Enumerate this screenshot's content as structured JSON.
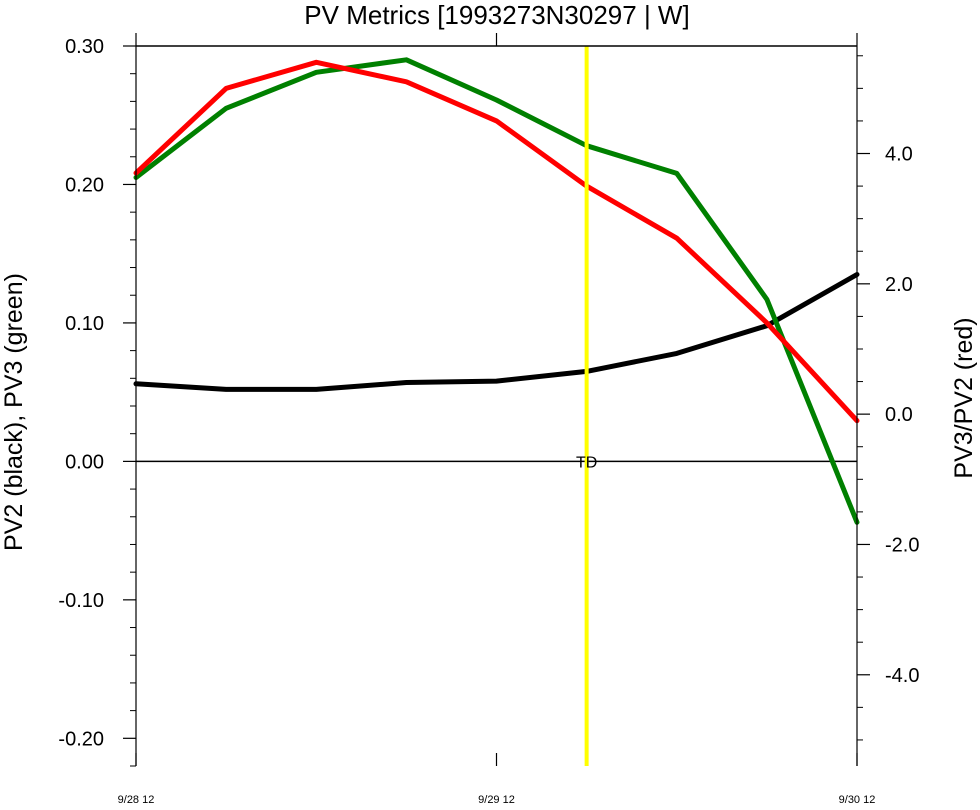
{
  "chart_data": {
    "type": "line",
    "title": "PV Metrics [1993273N30297 | W]",
    "ylabel_left": "PV2 (black), PV3 (green)",
    "ylabel_right": "PV3/PV2 (red)",
    "x_ticks": [
      "9/28 12",
      "9/29 12",
      "9/30 12"
    ],
    "x": [
      0,
      0.25,
      0.5,
      0.75,
      1,
      1.25,
      1.5,
      1.75,
      2
    ],
    "xlim": [
      0,
      2
    ],
    "ylim_left": [
      -0.22,
      0.3
    ],
    "ylim_right": [
      -5.4,
      5.65
    ],
    "y_ticks_left": [
      {
        "value": 0.3,
        "label": "0.30"
      },
      {
        "value": 0.2,
        "label": "0.20"
      },
      {
        "value": 0.1,
        "label": "0.10"
      },
      {
        "value": 0.0,
        "label": "0.00"
      },
      {
        "value": -0.1,
        "label": "-0.10"
      },
      {
        "value": -0.2,
        "label": "-0.20"
      }
    ],
    "y_ticks_right": [
      {
        "value": 4.0,
        "label": "4.0"
      },
      {
        "value": 2.0,
        "label": "2.0"
      },
      {
        "value": 0.0,
        "label": "0.0"
      },
      {
        "value": -2.0,
        "label": "-2.0"
      },
      {
        "value": -4.0,
        "label": "-4.0"
      }
    ],
    "series": [
      {
        "axis": "left",
        "color": "#000000",
        "values": [
          0.056,
          0.052,
          0.052,
          0.057,
          0.058,
          0.065,
          0.078,
          0.098,
          0.135
        ]
      },
      {
        "axis": "left",
        "color": "#008000",
        "values": [
          0.205,
          0.255,
          0.281,
          0.29,
          0.261,
          0.228,
          0.208,
          0.117,
          -0.044
        ]
      },
      {
        "axis": "right",
        "color": "#ff0000",
        "values": [
          3.7,
          5.0,
          5.4,
          5.1,
          4.5,
          3.5,
          2.7,
          1.4,
          -0.1
        ]
      }
    ],
    "zero_line": {
      "value": 0.0,
      "color": "#000000"
    },
    "marker_line": {
      "x": 1.25,
      "color": "#ffff00",
      "label": "TD"
    }
  }
}
